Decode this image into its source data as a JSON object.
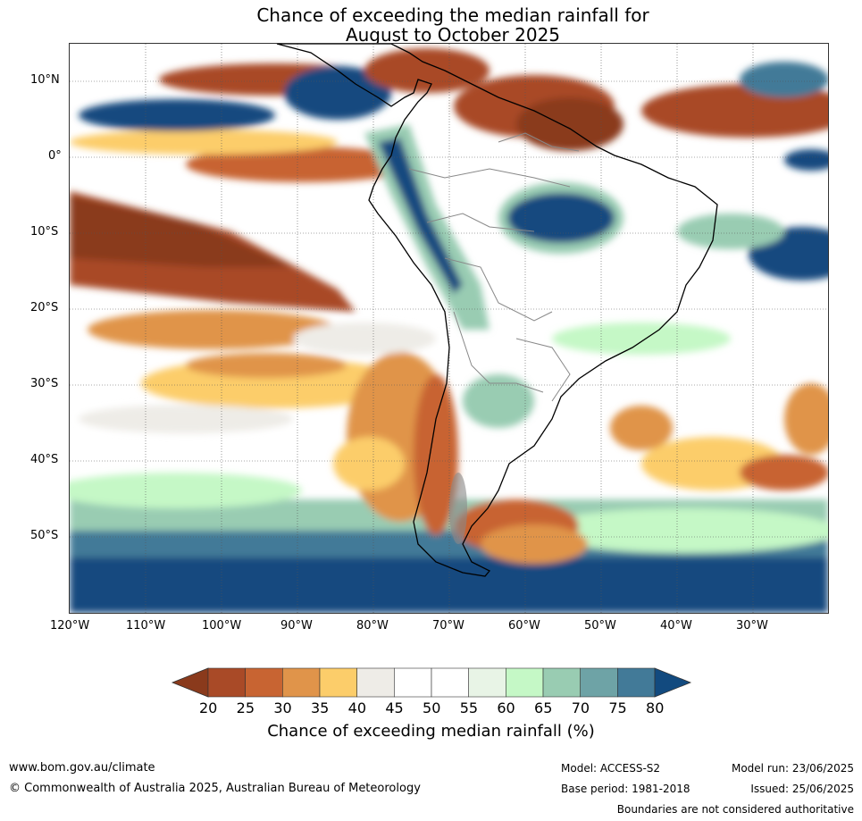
{
  "title_line1": "Chance of exceeding the median rainfall for",
  "title_line2": "August to October 2025",
  "map": {
    "lat_labels": [
      "10°N",
      "0°",
      "10°S",
      "20°S",
      "30°S",
      "40°S",
      "50°S"
    ],
    "lon_labels": [
      "120°W",
      "110°W",
      "100°W",
      "90°W",
      "80°W",
      "70°W",
      "60°W",
      "50°W",
      "40°W",
      "30°W"
    ]
  },
  "colorbar": {
    "ticks": [
      "20",
      "25",
      "30",
      "35",
      "40",
      "45",
      "50",
      "55",
      "60",
      "65",
      "70",
      "75",
      "80"
    ],
    "colors": [
      "#8a3a1c",
      "#a94a27",
      "#c86432",
      "#e0944a",
      "#fccd6a",
      "#eeece7",
      "#ffffff",
      "#ffffff",
      "#e8f4e6",
      "#c5f8c6",
      "#99ccb2",
      "#6ea3a6",
      "#427a98",
      "#124a7f"
    ],
    "label": "Chance of exceeding median rainfall (%)"
  },
  "footer": {
    "website": "www.bom.gov.au/climate",
    "copyright": "© Commonwealth of Australia 2025, Australian Bureau of Meteorology",
    "model": "Model: ACCESS-S2",
    "base_period": "Base period: 1981-2018",
    "model_run": "Model run: 23/06/2025",
    "issued": "Issued: 25/06/2025",
    "disclaimer": "Boundaries are not considered authoritative"
  }
}
